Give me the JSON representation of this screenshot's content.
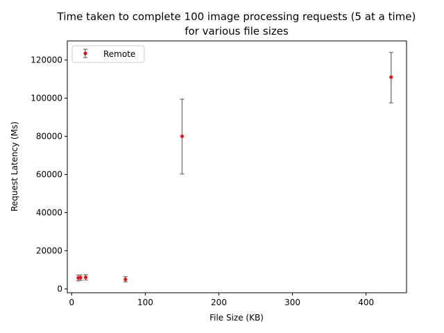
{
  "chart_data": {
    "type": "scatter",
    "title_line1": "Time taken to complete 100 image processing requests (5 at a time)",
    "title_line2": "for various file sizes",
    "xlabel": "File Size (KB)",
    "ylabel": "Request Latency (Ms)",
    "xlim": [
      -6,
      455
    ],
    "ylim": [
      -2000,
      130000
    ],
    "xticks": [
      0,
      100,
      200,
      300,
      400
    ],
    "yticks": [
      0,
      20000,
      40000,
      60000,
      80000,
      100000,
      120000
    ],
    "legend_position": "top-left",
    "grid": false,
    "series": [
      {
        "name": "Remote",
        "color": "#ff0000",
        "errorbar_color": "#808080",
        "points": [
          {
            "x": 9,
            "y": 5800,
            "low": 4300,
            "high": 7300
          },
          {
            "x": 12,
            "y": 5900,
            "low": 4500,
            "high": 7300
          },
          {
            "x": 19,
            "y": 6100,
            "low": 4700,
            "high": 7500
          },
          {
            "x": 73,
            "y": 5000,
            "low": 3700,
            "high": 6500
          },
          {
            "x": 150,
            "y": 80000,
            "low": 60300,
            "high": 99500
          },
          {
            "x": 434,
            "y": 111000,
            "low": 97500,
            "high": 124000
          }
        ]
      }
    ]
  }
}
